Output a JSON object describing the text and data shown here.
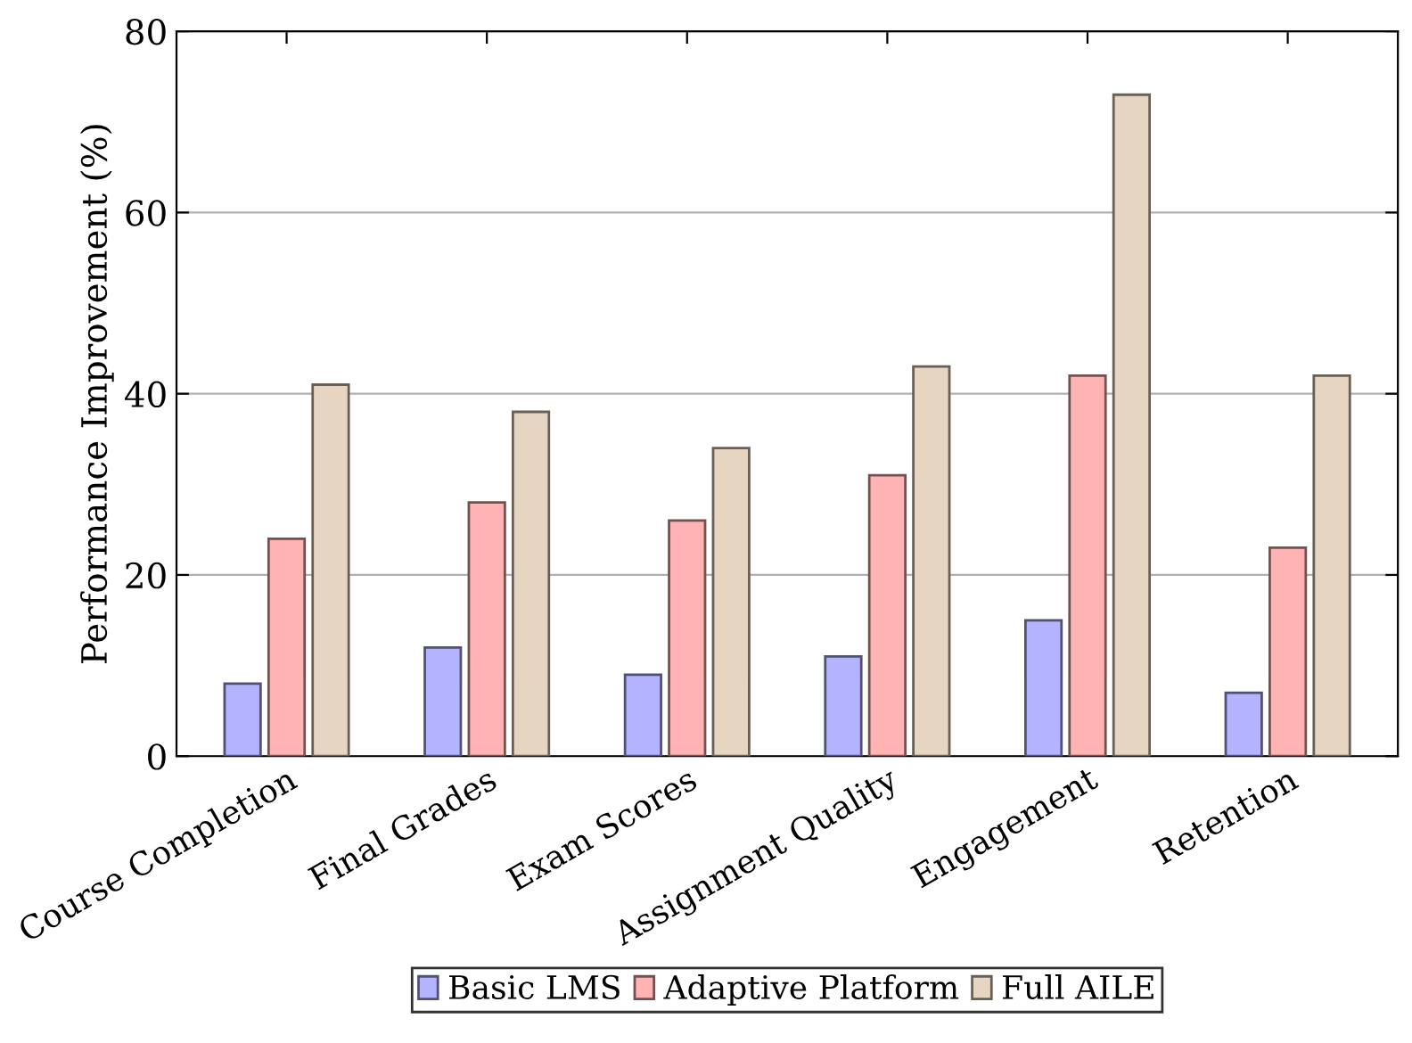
{
  "chart_data": {
    "type": "bar",
    "ylabel": "Performance Improvement (%)",
    "categories": [
      "Course Completion",
      "Final Grades",
      "Exam Scores",
      "Assignment Quality",
      "Engagement",
      "Retention"
    ],
    "series": [
      {
        "name": "Basic LMS",
        "color": "#b3b3ff",
        "values": [
          8,
          12,
          9,
          11,
          15,
          7
        ]
      },
      {
        "name": "Adaptive Platform",
        "color": "#ffb3b3",
        "values": [
          24,
          28,
          26,
          31,
          42,
          23
        ]
      },
      {
        "name": "Full AILE",
        "color": "#e6d5c0",
        "values": [
          41,
          38,
          34,
          43,
          73,
          42
        ]
      }
    ],
    "ylim": [
      0,
      80
    ],
    "yticks": [
      0,
      20,
      40,
      60,
      80
    ],
    "grid": "y",
    "legend": "bottom"
  }
}
